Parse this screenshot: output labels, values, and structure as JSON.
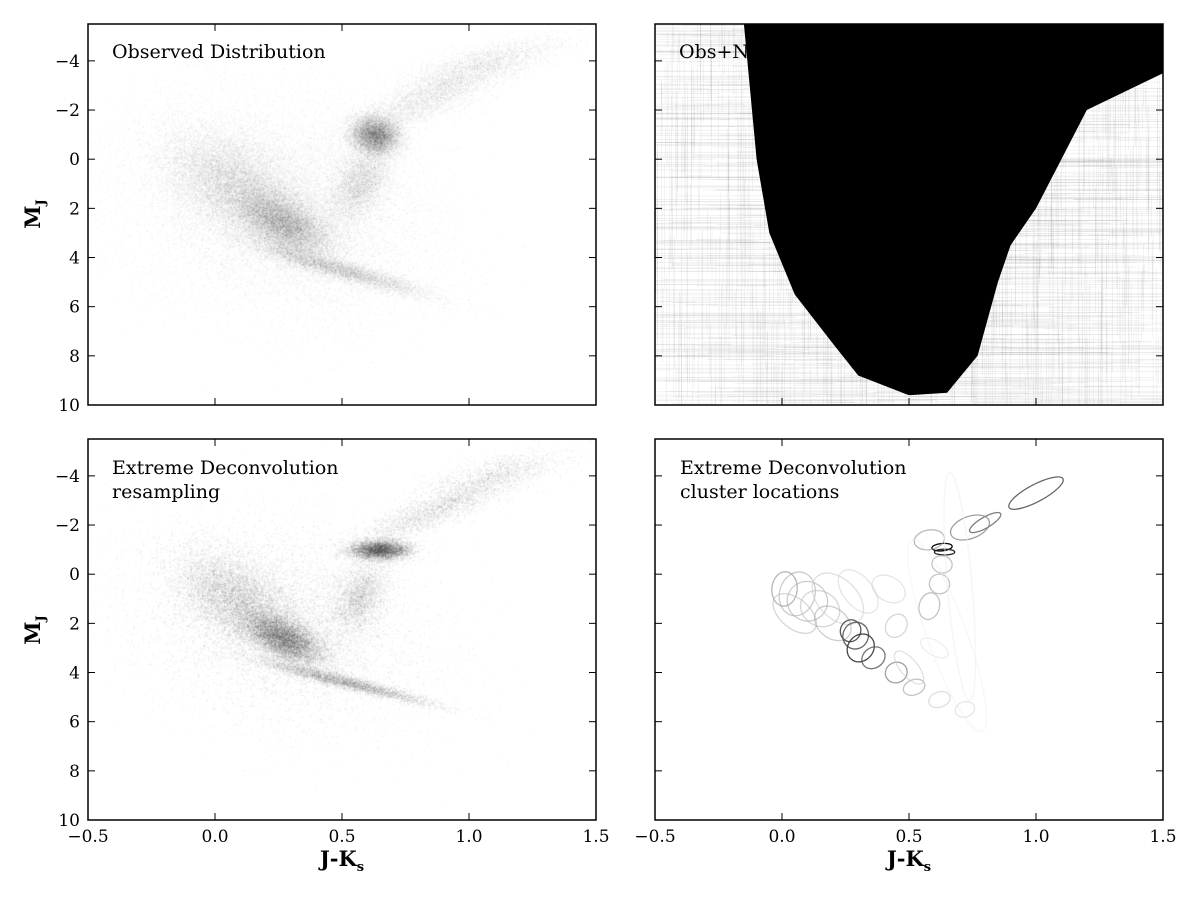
{
  "chart_data": [
    {
      "type": "scatter",
      "panel": "observed",
      "title": "Observed Distribution",
      "subtitle": "",
      "xlabel": "J-K",
      "xlabel_sub": "s",
      "ylabel": "M",
      "ylabel_sub": "J",
      "xlim": [
        -0.5,
        1.5
      ],
      "ylim": [
        10,
        -5.5
      ],
      "y_inverted": true,
      "xticks": [
        -0.5,
        0.0,
        0.5,
        1.0,
        1.5
      ],
      "yticks": [
        -4,
        -2,
        0,
        2,
        4,
        6,
        8,
        10
      ],
      "xtick_labels_shown": false,
      "ytick_labels_shown": true,
      "grid": false,
      "series": [
        {
          "components": [
            {
              "x": 0.27,
              "y": 2.6,
              "sx": 0.1,
              "sy": 0.75,
              "rho": 0.55,
              "weight": 0.22
            },
            {
              "x": 0.06,
              "y": 0.9,
              "sx": 0.14,
              "sy": 1.15,
              "rho": 0.45,
              "weight": 0.17
            },
            {
              "x": 0.5,
              "y": 4.5,
              "sx": 0.18,
              "sy": 0.55,
              "rho": 0.92,
              "weight": 0.09
            },
            {
              "x": 0.63,
              "y": -1.0,
              "sx": 0.05,
              "sy": 0.4,
              "rho": 0.1,
              "weight": 0.14
            },
            {
              "x": 0.57,
              "y": 0.9,
              "sx": 0.06,
              "sy": 0.8,
              "rho": -0.4,
              "weight": 0.07
            },
            {
              "x": 0.85,
              "y": -2.6,
              "sx": 0.17,
              "sy": 0.9,
              "rho": -0.85,
              "weight": 0.07
            },
            {
              "x": 1.08,
              "y": -4.0,
              "sx": 0.16,
              "sy": 0.55,
              "rho": -0.7,
              "weight": 0.03
            },
            {
              "x": 0.25,
              "y": 2.0,
              "sx": 0.3,
              "sy": 2.3,
              "rho": 0.2,
              "weight": 0.21
            }
          ],
          "samples": 60000,
          "opacity": 0.05,
          "color": "#000000"
        }
      ]
    },
    {
      "type": "scatter",
      "panel": "obs-noise",
      "title": "Obs+Noise Distribution",
      "subtitle": "",
      "xlabel": "",
      "ylabel": "",
      "xlim": [
        -0.5,
        1.5
      ],
      "ylim": [
        10,
        -5.5
      ],
      "y_inverted": true,
      "xticks": [
        -0.5,
        0.0,
        0.5,
        1.0,
        1.5
      ],
      "yticks": [
        -4,
        -2,
        0,
        2,
        4,
        6,
        8,
        10
      ],
      "xtick_labels_shown": false,
      "ytick_labels_shown": false,
      "grid": false,
      "series": [
        {
          "note_type": "error-bars",
          "saturated_region": {
            "x_left": [
              -0.15,
              -0.1,
              -0.05,
              0.05,
              0.2,
              0.3
            ],
            "y_left": [
              -5.5,
              0.0,
              3.0,
              5.5,
              7.5,
              8.8
            ],
            "x_bottom": [
              0.3,
              0.5,
              0.65,
              0.77
            ],
            "y_bottom": [
              8.8,
              9.6,
              9.5,
              8.0
            ],
            "x_right": [
              0.85,
              0.9,
              1.0,
              1.1,
              1.2,
              1.5
            ],
            "y_right": [
              5.0,
              3.5,
              2.0,
              0.0,
              -2.0,
              -3.5
            ]
          },
          "error_bar_count": 900,
          "color": "#000000"
        }
      ]
    },
    {
      "type": "scatter",
      "panel": "xd-resampling",
      "title": "Extreme Deconvolution",
      "subtitle": "resampling",
      "xlabel": "J-K",
      "xlabel_sub": "s",
      "ylabel": "M",
      "ylabel_sub": "J",
      "xlim": [
        -0.5,
        1.5
      ],
      "ylim": [
        10,
        -5.5
      ],
      "y_inverted": true,
      "xticks": [
        -0.5,
        0.0,
        0.5,
        1.0,
        1.5
      ],
      "xtick_labels": [
        "−0.5",
        "0.0",
        "0.5",
        "1.0",
        "1.5"
      ],
      "yticks": [
        -4,
        -2,
        0,
        2,
        4,
        6,
        8,
        10
      ],
      "xtick_labels_shown": true,
      "ytick_labels_shown": true,
      "grid": false,
      "series": [
        {
          "components": [
            {
              "x": 0.27,
              "y": 2.6,
              "sx": 0.08,
              "sy": 0.55,
              "rho": 0.55,
              "weight": 0.24
            },
            {
              "x": 0.07,
              "y": 0.9,
              "sx": 0.12,
              "sy": 0.95,
              "rho": 0.45,
              "weight": 0.17
            },
            {
              "x": 0.52,
              "y": 4.4,
              "sx": 0.17,
              "sy": 0.45,
              "rho": 0.95,
              "weight": 0.1
            },
            {
              "x": 0.65,
              "y": -1.0,
              "sx": 0.06,
              "sy": 0.2,
              "rho": 0.0,
              "weight": 0.14
            },
            {
              "x": 0.57,
              "y": 0.9,
              "sx": 0.06,
              "sy": 0.8,
              "rho": -0.4,
              "weight": 0.07
            },
            {
              "x": 0.88,
              "y": -2.7,
              "sx": 0.17,
              "sy": 0.8,
              "rho": -0.88,
              "weight": 0.07
            },
            {
              "x": 1.1,
              "y": -4.1,
              "sx": 0.15,
              "sy": 0.5,
              "rho": -0.7,
              "weight": 0.03
            },
            {
              "x": 0.25,
              "y": 2.0,
              "sx": 0.28,
              "sy": 2.0,
              "rho": 0.2,
              "weight": 0.18
            }
          ],
          "samples": 40000,
          "opacity": 0.07,
          "color": "#000000"
        }
      ]
    },
    {
      "type": "scatter",
      "panel": "xd-clusters",
      "title": "Extreme Deconvolution",
      "subtitle": "cluster locations",
      "xlabel": "J-K",
      "xlabel_sub": "s",
      "ylabel": "",
      "xlim": [
        -0.5,
        1.5
      ],
      "ylim": [
        10,
        -5.5
      ],
      "y_inverted": true,
      "xticks": [
        -0.5,
        0.0,
        0.5,
        1.0,
        1.5
      ],
      "xtick_labels": [
        "−0.5",
        "0.0",
        "0.5",
        "1.0",
        "1.5"
      ],
      "yticks": [
        -4,
        -2,
        0,
        2,
        4,
        6,
        8,
        10
      ],
      "xtick_labels_shown": true,
      "ytick_labels_shown": false,
      "grid": false,
      "ellipses": [
        {
          "x": 1.0,
          "y": -3.3,
          "rx": 0.12,
          "ry": 0.35,
          "angle": -28,
          "color": "#555555",
          "opacity": 0.9
        },
        {
          "x": 0.8,
          "y": -2.1,
          "rx": 0.07,
          "ry": 0.22,
          "angle": -30,
          "color": "#666666",
          "opacity": 0.85
        },
        {
          "x": 0.74,
          "y": -1.9,
          "rx": 0.08,
          "ry": 0.45,
          "angle": -20,
          "color": "#888888",
          "opacity": 0.8
        },
        {
          "x": 0.63,
          "y": -1.1,
          "rx": 0.04,
          "ry": 0.15,
          "angle": -5,
          "color": "#000000",
          "opacity": 1.0
        },
        {
          "x": 0.64,
          "y": -0.9,
          "rx": 0.04,
          "ry": 0.12,
          "angle": 0,
          "color": "#222222",
          "opacity": 1.0
        },
        {
          "x": 0.58,
          "y": -1.4,
          "rx": 0.06,
          "ry": 0.4,
          "angle": -10,
          "color": "#999999",
          "opacity": 0.7
        },
        {
          "x": 0.63,
          "y": -0.4,
          "rx": 0.04,
          "ry": 0.35,
          "angle": 10,
          "color": "#aaaaaa",
          "opacity": 0.7
        },
        {
          "x": 0.62,
          "y": 0.4,
          "rx": 0.04,
          "ry": 0.4,
          "angle": 15,
          "color": "#aaaaaa",
          "opacity": 0.7
        },
        {
          "x": 0.58,
          "y": 1.3,
          "rx": 0.04,
          "ry": 0.55,
          "angle": 15,
          "color": "#aaaaaa",
          "opacity": 0.7
        },
        {
          "x": 0.45,
          "y": 2.1,
          "rx": 0.04,
          "ry": 0.5,
          "angle": 35,
          "color": "#bbbbbb",
          "opacity": 0.6
        },
        {
          "x": 0.01,
          "y": 0.6,
          "rx": 0.05,
          "ry": 0.7,
          "angle": 5,
          "color": "#999999",
          "opacity": 0.7
        },
        {
          "x": 0.06,
          "y": 0.8,
          "rx": 0.07,
          "ry": 0.9,
          "angle": 15,
          "color": "#aaaaaa",
          "opacity": 0.6
        },
        {
          "x": 0.1,
          "y": 1.1,
          "rx": 0.08,
          "ry": 0.8,
          "angle": 25,
          "color": "#aaaaaa",
          "opacity": 0.6
        },
        {
          "x": 0.15,
          "y": 1.4,
          "rx": 0.08,
          "ry": 0.7,
          "angle": 30,
          "color": "#bbbbbb",
          "opacity": 0.6
        },
        {
          "x": 0.05,
          "y": 1.6,
          "rx": 0.1,
          "ry": 0.6,
          "angle": 40,
          "color": "#bbbbbb",
          "opacity": 0.6
        },
        {
          "x": 0.22,
          "y": 1.0,
          "rx": 0.12,
          "ry": 0.8,
          "angle": 45,
          "color": "#cccccc",
          "opacity": 0.6
        },
        {
          "x": 0.3,
          "y": 0.7,
          "rx": 0.1,
          "ry": 0.6,
          "angle": 50,
          "color": "#cccccc",
          "opacity": 0.5
        },
        {
          "x": 0.42,
          "y": 0.6,
          "rx": 0.07,
          "ry": 0.5,
          "angle": 30,
          "color": "#cccccc",
          "opacity": 0.5
        },
        {
          "x": 0.2,
          "y": 2.0,
          "rx": 0.08,
          "ry": 0.6,
          "angle": 40,
          "color": "#aaaaaa",
          "opacity": 0.6
        },
        {
          "x": 0.27,
          "y": 2.3,
          "rx": 0.04,
          "ry": 0.45,
          "angle": 20,
          "color": "#444444",
          "opacity": 0.9
        },
        {
          "x": 0.29,
          "y": 2.5,
          "rx": 0.05,
          "ry": 0.55,
          "angle": 25,
          "color": "#555555",
          "opacity": 0.9
        },
        {
          "x": 0.31,
          "y": 3.0,
          "rx": 0.05,
          "ry": 0.6,
          "angle": 40,
          "color": "#333333",
          "opacity": 0.9
        },
        {
          "x": 0.36,
          "y": 3.4,
          "rx": 0.04,
          "ry": 0.5,
          "angle": 55,
          "color": "#555555",
          "opacity": 0.8
        },
        {
          "x": 0.45,
          "y": 4.0,
          "rx": 0.04,
          "ry": 0.45,
          "angle": 65,
          "color": "#777777",
          "opacity": 0.7
        },
        {
          "x": 0.52,
          "y": 4.6,
          "rx": 0.03,
          "ry": 0.45,
          "angle": 70,
          "color": "#999999",
          "opacity": 0.6
        },
        {
          "x": 0.62,
          "y": 5.1,
          "rx": 0.03,
          "ry": 0.45,
          "angle": 72,
          "color": "#bbbbbb",
          "opacity": 0.5
        },
        {
          "x": 0.72,
          "y": 5.5,
          "rx": 0.03,
          "ry": 0.4,
          "angle": 74,
          "color": "#cccccc",
          "opacity": 0.5
        },
        {
          "x": 0.5,
          "y": 3.8,
          "rx": 0.08,
          "ry": 0.35,
          "angle": 50,
          "color": "#cccccc",
          "opacity": 0.6
        },
        {
          "x": 0.6,
          "y": 3.0,
          "rx": 0.06,
          "ry": 0.3,
          "angle": 30,
          "color": "#dddddd",
          "opacity": 0.5
        },
        {
          "x": 0.7,
          "y": 0.5,
          "rx": 0.45,
          "ry": 0.5,
          "angle": 85,
          "color": "#eeeeee",
          "opacity": 0.6
        },
        {
          "x": 0.65,
          "y": 2.5,
          "rx": 0.4,
          "ry": 0.8,
          "angle": 70,
          "color": "#f0f0f0",
          "opacity": 0.5
        }
      ]
    }
  ]
}
